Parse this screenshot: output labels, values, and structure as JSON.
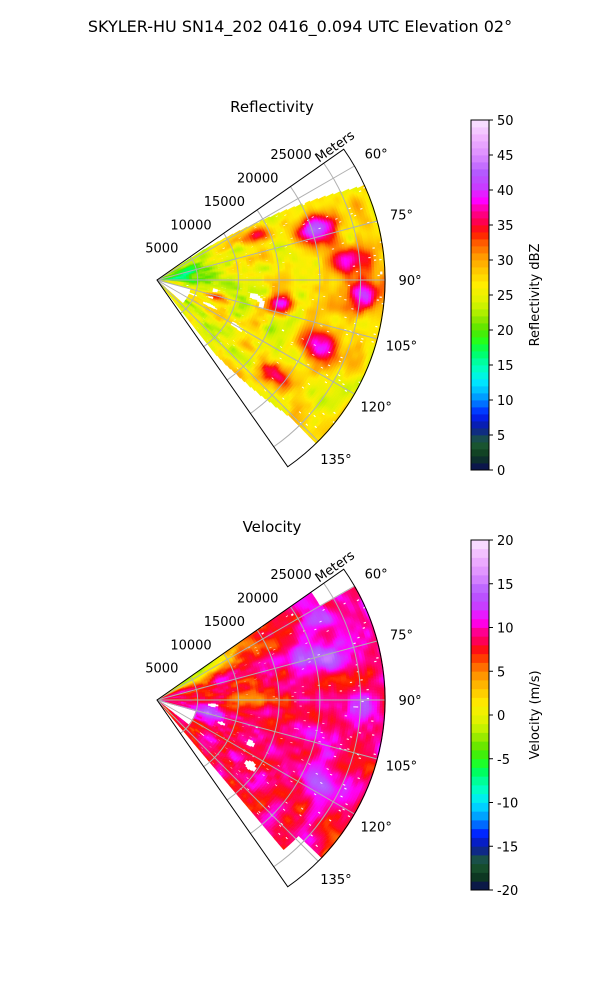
{
  "suptitle": "SKYLER-HU  SN14_202  0416_0.094 UTC Elevation 02°",
  "chart_data": [
    {
      "type": "heatmap",
      "projection": "polar-sector",
      "title": "Reflectivity",
      "range_label": "Meters",
      "range_ticks": [
        "5000",
        "10000",
        "15000",
        "20000",
        "25000"
      ],
      "range_tick_values": [
        5000,
        10000,
        15000,
        20000,
        25000
      ],
      "max_range": 28000,
      "angle_ticks": [
        "60°",
        "75°",
        "90°",
        "105°",
        "120°",
        "135°"
      ],
      "angle_tick_values": [
        60,
        75,
        90,
        105,
        120,
        135
      ],
      "angle_range": [
        55,
        145
      ],
      "grid": true,
      "colorbar": {
        "label": "Reflectivity dBZ",
        "min": 0,
        "max": 50,
        "ticks": [
          "0",
          "5",
          "10",
          "15",
          "20",
          "25",
          "30",
          "35",
          "40",
          "45",
          "50"
        ],
        "tick_values": [
          0,
          5,
          10,
          15,
          20,
          25,
          30,
          35,
          40,
          45,
          50
        ],
        "levels": 50,
        "colors": [
          "#0a0a5a",
          "#0d3a1e",
          "#1d5c36",
          "#0a1d9a",
          "#0020ff",
          "#0070ff",
          "#00b4ff",
          "#00e4ff",
          "#00ffd2",
          "#00ff9e",
          "#00ff5a",
          "#27ff1a",
          "#52e600",
          "#8ce800",
          "#c0f200",
          "#e4f200",
          "#ffee00",
          "#ffc800",
          "#ff9a00",
          "#ff5a00",
          "#ff1400",
          "#ff0050",
          "#ff0096",
          "#ff00ff",
          "#c83cff",
          "#b45aff",
          "#dc8cff",
          "#f0b4ff",
          "#fae6ff"
        ],
        "color_stops": [
          0,
          2,
          4,
          6,
          8,
          9.5,
          11,
          12.5,
          14,
          15.5,
          17,
          18.5,
          20,
          21.5,
          23,
          24.5,
          26.5,
          28.5,
          30.5,
          32.5,
          34,
          35.5,
          37,
          38.5,
          40.5,
          42.5,
          45,
          47.5,
          50
        ]
      },
      "field_description": "mostly 20-30 dBZ (green-yellow) with embedded 35-45 dBZ cores (red-magenta) at longer range between about 65° and 120°; sparse low values near the radar"
    },
    {
      "type": "heatmap",
      "projection": "polar-sector",
      "title": "Velocity",
      "range_label": "Meters",
      "range_ticks": [
        "5000",
        "10000",
        "15000",
        "20000",
        "25000"
      ],
      "range_tick_values": [
        5000,
        10000,
        15000,
        20000,
        25000
      ],
      "max_range": 28000,
      "angle_ticks": [
        "60°",
        "75°",
        "90°",
        "105°",
        "120°",
        "135°"
      ],
      "angle_tick_values": [
        60,
        75,
        90,
        105,
        120,
        135
      ],
      "angle_range": [
        55,
        145
      ],
      "grid": true,
      "colorbar": {
        "label": "Velocity (m/s)",
        "min": -20,
        "max": 20,
        "ticks": [
          "-20",
          "-15",
          "-10",
          "-5",
          "0",
          "5",
          "10",
          "15",
          "20"
        ],
        "tick_values": [
          -20,
          -15,
          -10,
          -5,
          0,
          5,
          10,
          15,
          20
        ],
        "levels": 40,
        "colors": [
          "#0a0a5a",
          "#0d3a1e",
          "#1d5c36",
          "#0a1d9a",
          "#0020ff",
          "#0070ff",
          "#00b4ff",
          "#00e4ff",
          "#00ffd2",
          "#00ff9e",
          "#00ff5a",
          "#27ff1a",
          "#52e600",
          "#8ce800",
          "#c0f200",
          "#e4f200",
          "#ffee00",
          "#ffc800",
          "#ff9a00",
          "#ff5a00",
          "#ff1400",
          "#ff0050",
          "#ff0096",
          "#ff00ff",
          "#c83cff",
          "#b45aff",
          "#dc8cff",
          "#f0b4ff",
          "#fae6ff"
        ],
        "color_stops": [
          -20,
          -18.4,
          -16.8,
          -15.2,
          -13.6,
          -12.4,
          -11.2,
          -10,
          -8.8,
          -7.6,
          -6.4,
          -5.2,
          -4,
          -2.8,
          -1.6,
          -0.4,
          1.2,
          2.8,
          4.4,
          6,
          7.2,
          8.4,
          9.6,
          10.8,
          12.4,
          14,
          16,
          18,
          20
        ]
      },
      "field_description": "-5 to 0 m/s (green-yellow) in the northern sector near the radar, 5-10 m/s (orange-red) over most of the sector, 12-16 m/s (magenta-purple) patches near 70-80° far range and near 100-110° close range"
    }
  ]
}
